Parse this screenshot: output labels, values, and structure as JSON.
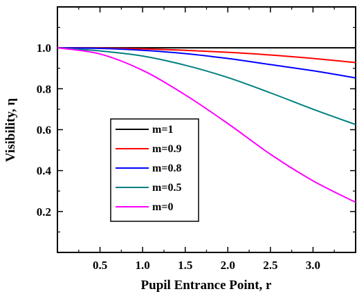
{
  "chart_data": {
    "type": "line",
    "xlabel": "Pupil Entrance Point, r",
    "ylabel": "Visibility, η",
    "xlim": [
      0.0,
      3.5
    ],
    "ylim": [
      0.0,
      1.2
    ],
    "x_ticks": [
      "0.5",
      "1.0",
      "1.5",
      "2.0",
      "2.5",
      "3.0"
    ],
    "y_ticks": [
      "0.2",
      "0.4",
      "0.6",
      "0.8",
      "1.0"
    ],
    "grid": false,
    "legend_position": "center-left",
    "series": [
      {
        "name": "m=1",
        "color": "#000000",
        "x": [
          0.0,
          0.5,
          1.0,
          1.5,
          2.0,
          2.5,
          3.0,
          3.5
        ],
        "y": [
          1.0,
          1.0,
          1.0,
          1.0,
          1.0,
          1.0,
          1.0,
          1.0
        ]
      },
      {
        "name": "m=0.9",
        "color": "#ff0000",
        "x": [
          0.0,
          0.5,
          1.0,
          1.5,
          2.0,
          2.5,
          3.0,
          3.5
        ],
        "y": [
          1.0,
          0.999,
          0.995,
          0.988,
          0.978,
          0.965,
          0.948,
          0.928
        ]
      },
      {
        "name": "m=0.8",
        "color": "#0000ff",
        "x": [
          0.0,
          0.5,
          1.0,
          1.5,
          2.0,
          2.5,
          3.0,
          3.5
        ],
        "y": [
          1.0,
          0.997,
          0.988,
          0.972,
          0.948,
          0.918,
          0.888,
          0.853
        ]
      },
      {
        "name": "m=0.5",
        "color": "#008080",
        "x": [
          0.0,
          0.5,
          1.0,
          1.5,
          2.0,
          2.5,
          3.0,
          3.5
        ],
        "y": [
          1.0,
          0.985,
          0.96,
          0.915,
          0.855,
          0.78,
          0.7,
          0.625
        ]
      },
      {
        "name": "m=0",
        "color": "#ff00ff",
        "x": [
          0.0,
          0.5,
          1.0,
          1.5,
          2.0,
          2.5,
          3.0,
          3.5
        ],
        "y": [
          1.0,
          0.97,
          0.89,
          0.77,
          0.63,
          0.48,
          0.35,
          0.245
        ]
      }
    ]
  }
}
